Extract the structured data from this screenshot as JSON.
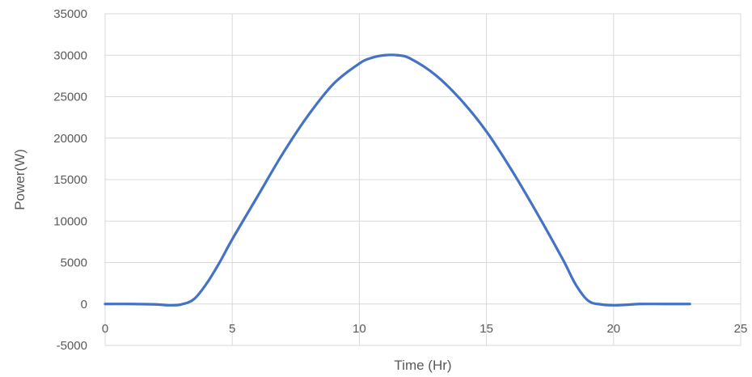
{
  "chart_data": {
    "type": "line",
    "title": "",
    "xlabel": "Time (Hr)",
    "ylabel": "Power(W)",
    "xlim": [
      0,
      25
    ],
    "ylim": [
      -5000,
      35000
    ],
    "x_ticks": [
      0,
      5,
      10,
      15,
      20,
      25
    ],
    "y_ticks": [
      -5000,
      0,
      5000,
      10000,
      15000,
      20000,
      25000,
      30000,
      35000
    ],
    "x_tick_labels": [
      "0",
      "5",
      "10",
      "15",
      "20",
      "25"
    ],
    "y_tick_labels": [
      "-5000",
      "0",
      "5000",
      "10000",
      "15000",
      "20000",
      "25000",
      "30000",
      "35000"
    ],
    "grid": true,
    "legend": "none",
    "series": [
      {
        "color": "#4472c4",
        "x": [
          0,
          1,
          2,
          2.5,
          3,
          3.5,
          4,
          4.5,
          5,
          6,
          7,
          8,
          9,
          10,
          10.5,
          11,
          11.5,
          12,
          13,
          14,
          15,
          16,
          17,
          18,
          18.5,
          19,
          19.5,
          20,
          20.5,
          21,
          22,
          23
        ],
        "values": [
          0,
          0,
          -50,
          -150,
          -50,
          600,
          2500,
          5000,
          7800,
          13000,
          18200,
          22800,
          26600,
          29000,
          29700,
          30000,
          30000,
          29600,
          27600,
          24600,
          20800,
          16100,
          10900,
          5400,
          2400,
          400,
          -50,
          -150,
          -100,
          0,
          0,
          0
        ]
      }
    ]
  }
}
